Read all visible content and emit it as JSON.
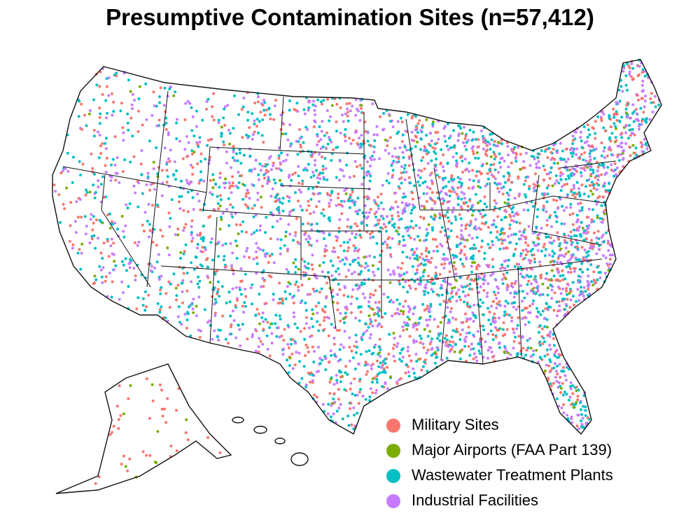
{
  "title": "Presumptive Contamination Sites (n=57,412)",
  "legend": {
    "items": [
      {
        "label": "Military Sites",
        "color": "#f8766d"
      },
      {
        "label": "Major Airports (FAA Part 139)",
        "color": "#7cae00"
      },
      {
        "label": "Wastewater Treatment Plants",
        "color": "#00bfc4"
      },
      {
        "label": "Industrial Facilities",
        "color": "#c77cff"
      }
    ]
  }
}
